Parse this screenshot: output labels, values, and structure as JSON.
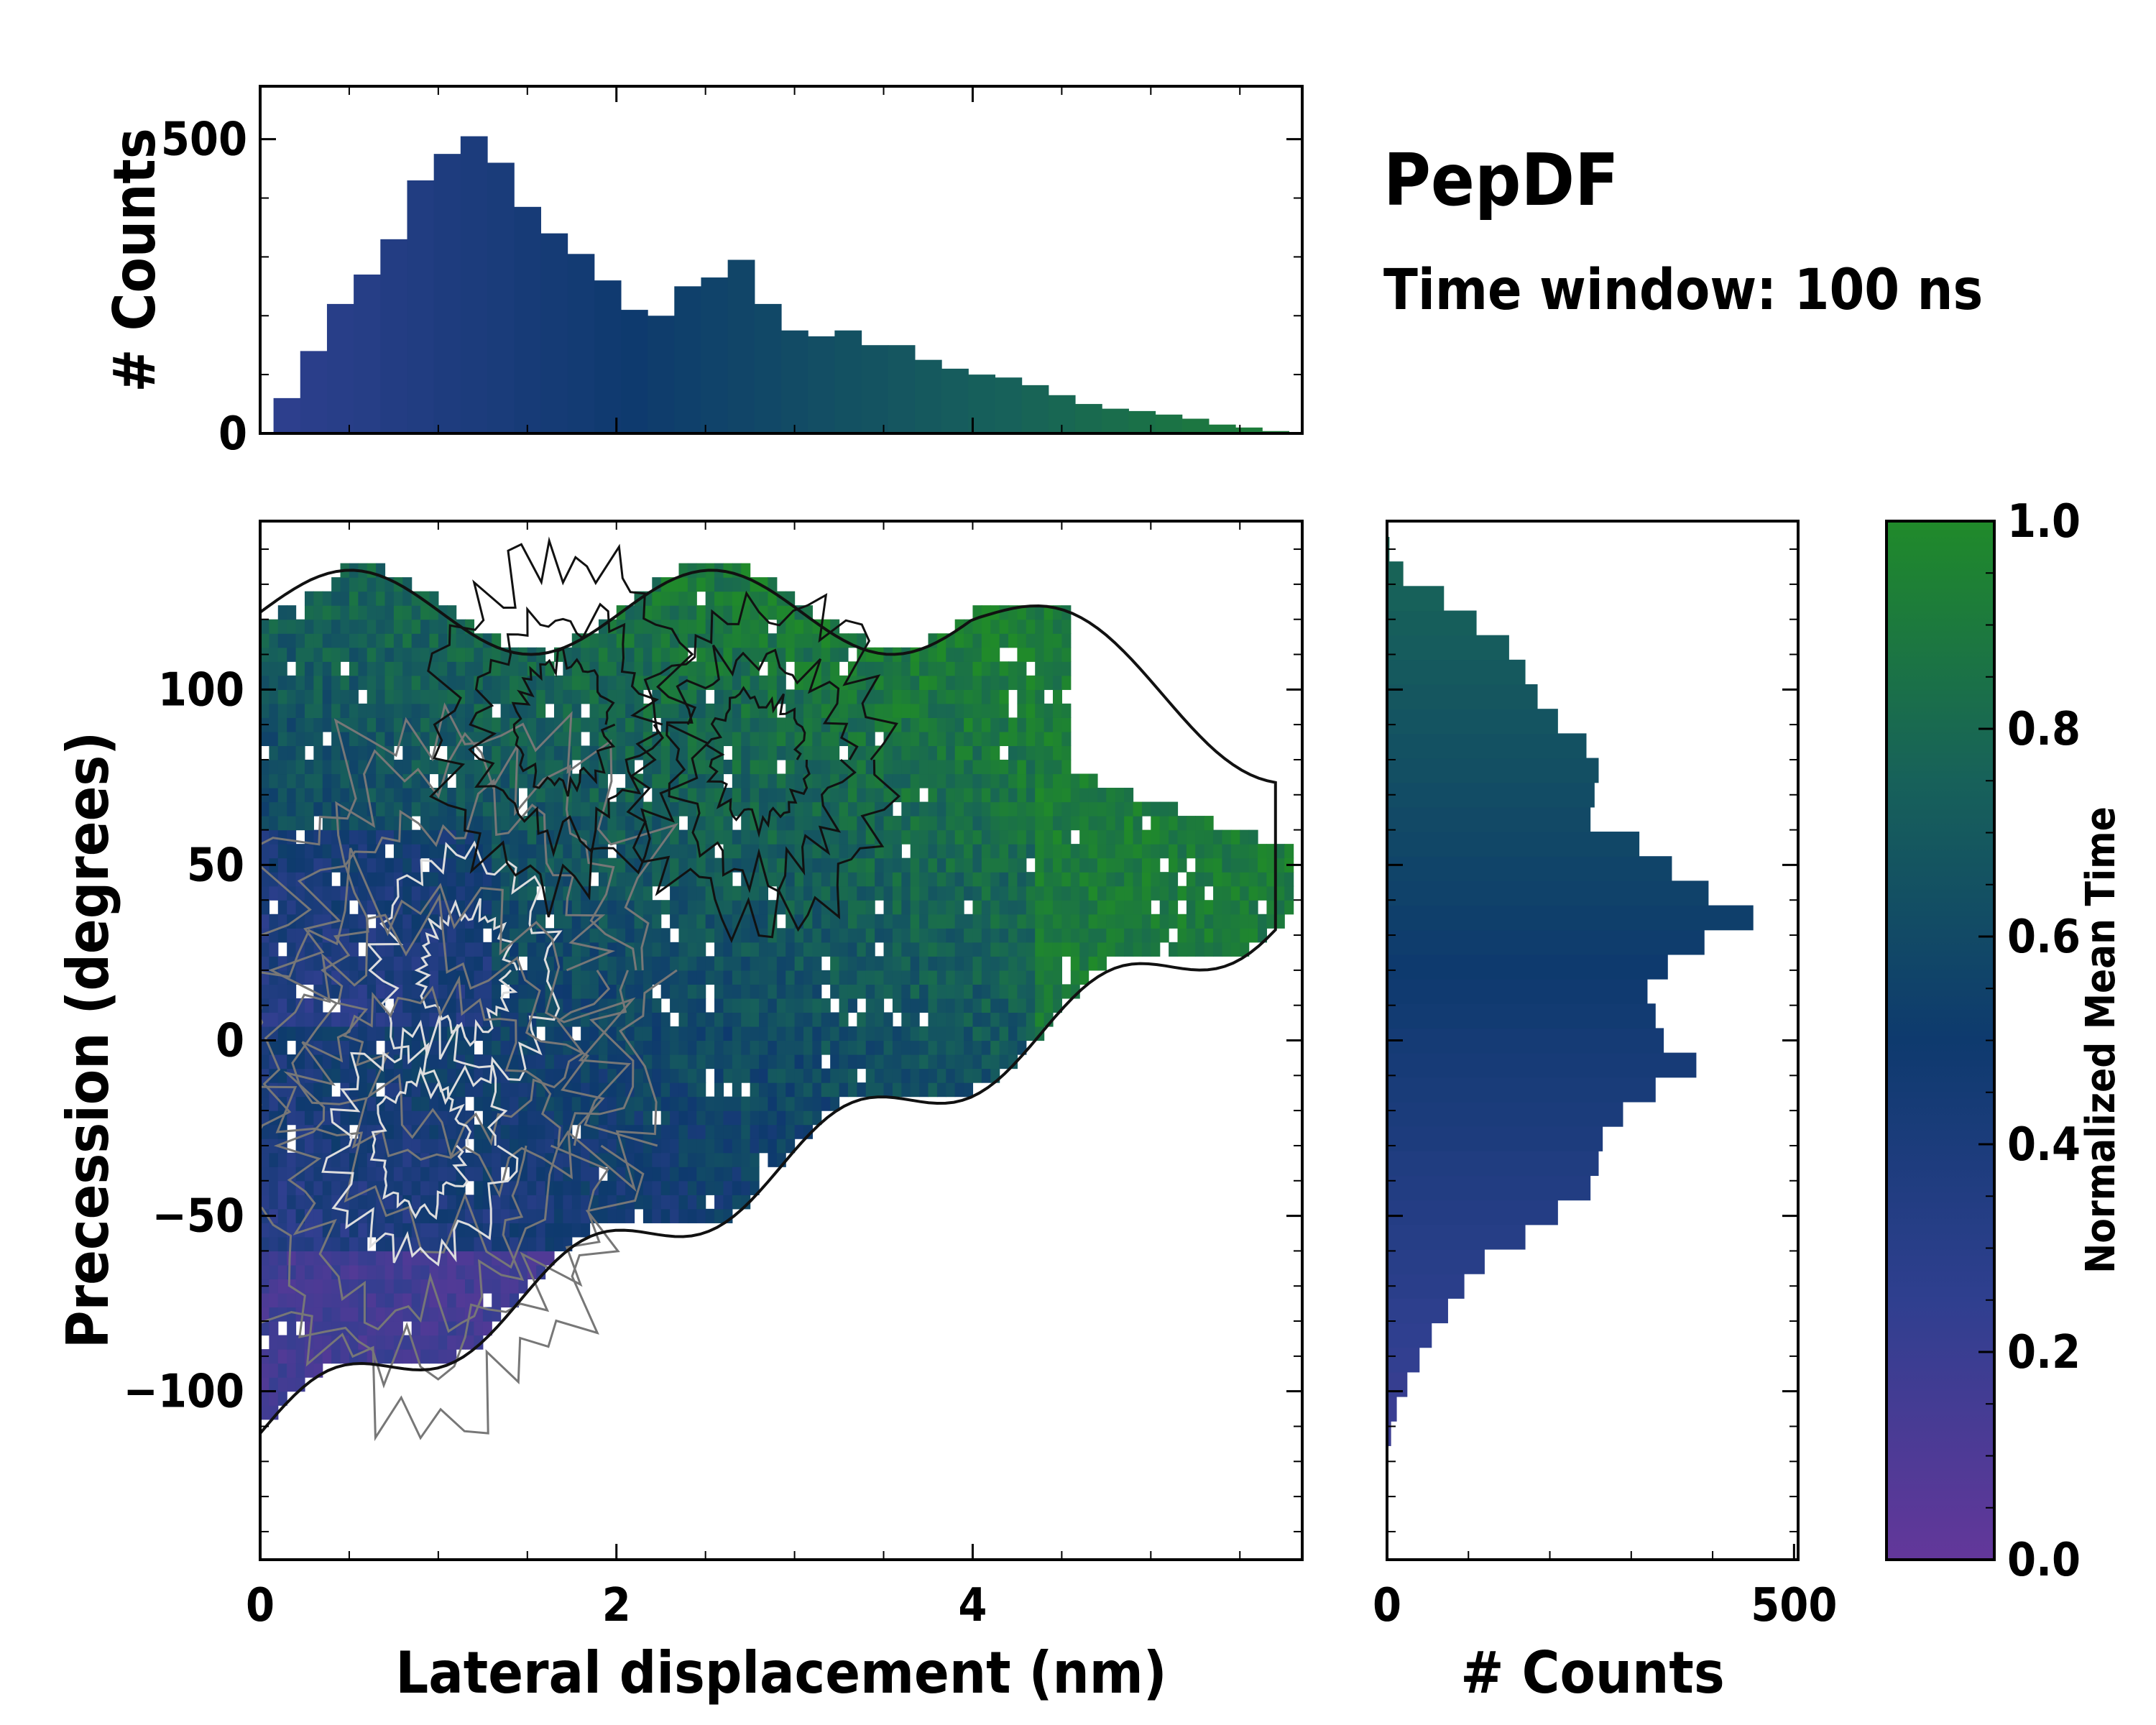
{
  "title": "PepDF",
  "subtitle": "Time window: 100 ns",
  "colors": {
    "low": "#63379a",
    "mid_low": "#2f3f8f",
    "mid": "#0e3a6e",
    "mid_high": "#17615a",
    "high": "#208a2a",
    "contour_dark": "#111111",
    "contour_light": "#dddddd",
    "outline": "#ffffff"
  },
  "chart_data": [
    {
      "id": "top_histogram",
      "type": "bar",
      "title": "",
      "xlabel": "",
      "ylabel": "# Counts",
      "xlim": [
        0,
        5.85
      ],
      "ylim": [
        0,
        590
      ],
      "yticks": [
        0,
        500
      ],
      "ytick_labels": [
        "0",
        "500"
      ],
      "x_centers": [
        0.15,
        0.3,
        0.45,
        0.6,
        0.75,
        0.9,
        1.05,
        1.2,
        1.35,
        1.5,
        1.65,
        1.8,
        1.95,
        2.1,
        2.25,
        2.4,
        2.55,
        2.7,
        2.85,
        3.0,
        3.15,
        3.3,
        3.45,
        3.6,
        3.75,
        3.9,
        4.05,
        4.2,
        4.35,
        4.5,
        4.65,
        4.8,
        4.95,
        5.1,
        5.25,
        5.4,
        5.55,
        5.7
      ],
      "values": [
        60,
        140,
        220,
        270,
        330,
        430,
        475,
        505,
        460,
        385,
        340,
        305,
        260,
        210,
        200,
        250,
        265,
        295,
        220,
        175,
        165,
        175,
        150,
        150,
        125,
        110,
        100,
        95,
        82,
        65,
        50,
        42,
        38,
        32,
        25,
        15,
        10,
        4
      ]
    },
    {
      "id": "main_2d_histogram",
      "type": "heatmap",
      "title": "",
      "xlabel": "Lateral displacement (nm)",
      "ylabel": "Precession (degrees)",
      "xlim": [
        0,
        5.85
      ],
      "ylim": [
        -148,
        148
      ],
      "xticks": [
        0,
        2,
        4
      ],
      "xtick_labels": [
        "0",
        "2",
        "4"
      ],
      "yticks": [
        -100,
        -50,
        0,
        50,
        100
      ],
      "ytick_labels": [
        "−100",
        "−50",
        "0",
        "50",
        "100"
      ],
      "color_label": "Normalized Mean Time",
      "color_range": [
        0.0,
        1.0
      ],
      "high_density_regions": [
        {
          "x": 1.15,
          "y": 20,
          "count_level": "high"
        },
        {
          "x": 0.9,
          "y": -30,
          "count_level": "high"
        },
        {
          "x": 1.7,
          "y": 90,
          "count_level": "medium"
        },
        {
          "x": 2.8,
          "y": 80,
          "count_level": "medium"
        }
      ]
    },
    {
      "id": "right_histogram",
      "type": "bar",
      "orientation": "horizontal",
      "title": "",
      "xlabel": "# Counts",
      "ylabel": "",
      "xlim": [
        0,
        505
      ],
      "ylim": [
        -148,
        148
      ],
      "xticks": [
        0,
        500
      ],
      "xtick_labels": [
        "0",
        "500"
      ],
      "y_centers": [
        -112,
        -105,
        -98,
        -91,
        -84,
        -77,
        -70,
        -63,
        -56,
        -49,
        -42,
        -35,
        -28,
        -21,
        -14,
        -7,
        0,
        7,
        14,
        21,
        28,
        35,
        42,
        49,
        56,
        63,
        70,
        77,
        84,
        91,
        98,
        105,
        112,
        119,
        126,
        133,
        140
      ],
      "values": [
        5,
        12,
        25,
        40,
        55,
        75,
        95,
        120,
        170,
        210,
        250,
        260,
        265,
        290,
        330,
        380,
        340,
        330,
        320,
        345,
        390,
        450,
        395,
        350,
        310,
        250,
        255,
        260,
        245,
        210,
        185,
        170,
        150,
        110,
        70,
        20,
        3
      ]
    },
    {
      "id": "colorbar",
      "type": "heatmap",
      "title": "",
      "xlabel": "",
      "ylabel": "Normalized Mean Time",
      "range": [
        0.0,
        1.0
      ],
      "ticks": [
        0.0,
        0.2,
        0.4,
        0.6,
        0.8,
        1.0
      ],
      "tick_labels": [
        "0.0",
        "0.2",
        "0.4",
        "0.6",
        "0.8",
        "1.0"
      ]
    }
  ]
}
